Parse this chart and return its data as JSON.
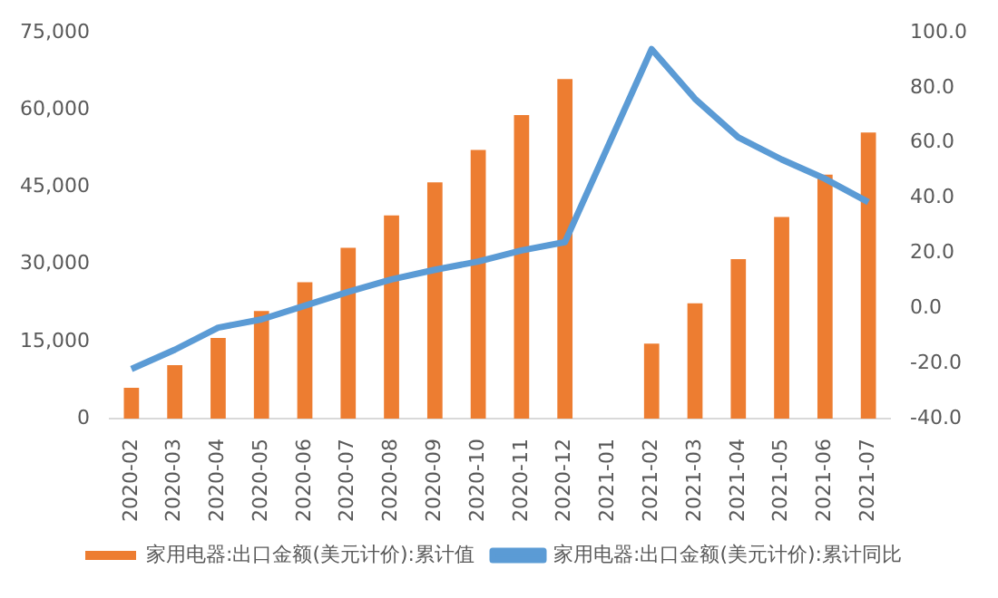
{
  "chart_data": {
    "type": "bar",
    "categories": [
      "2020-02",
      "2020-03",
      "2020-04",
      "2020-05",
      "2020-06",
      "2020-07",
      "2020-08",
      "2020-09",
      "2020-10",
      "2020-11",
      "2020-12",
      "2021-01",
      "2021-02",
      "2021-03",
      "2021-04",
      "2021-05",
      "2021-06",
      "2021-07"
    ],
    "series": [
      {
        "name": "家用电器:出口金额(美元计价):累计值",
        "color": "#ed7d31",
        "values": [
          6000,
          10400,
          15700,
          20900,
          26500,
          33200,
          39500,
          45900,
          52200,
          59000,
          66000,
          null,
          14600,
          22400,
          31000,
          39200,
          47400,
          55600
        ]
      },
      {
        "name": "家用电器:出口金额(美元计价):累计同比",
        "type": "line",
        "axis": "y2",
        "color": "#5b9bd5",
        "values": [
          -22,
          -15,
          -7,
          -4,
          1,
          6,
          10.5,
          14,
          17,
          21,
          24,
          null,
          94,
          76,
          62,
          54,
          47,
          38.5
        ]
      }
    ],
    "ylim": [
      0,
      75000
    ],
    "yticks": [
      {
        "value": 0,
        "label": "0"
      },
      {
        "value": 15000,
        "label": "15,000"
      },
      {
        "value": 30000,
        "label": "30,000"
      },
      {
        "value": 45000,
        "label": "45,000"
      },
      {
        "value": 60000,
        "label": "60,000"
      },
      {
        "value": 75000,
        "label": "75,000"
      }
    ],
    "y2lim": [
      -40,
      100
    ],
    "y2ticks": [
      {
        "value": -40,
        "label": "-40.0"
      },
      {
        "value": -20,
        "label": "-20.0"
      },
      {
        "value": 0,
        "label": "0.0"
      },
      {
        "value": 20,
        "label": "20.0"
      },
      {
        "value": 40,
        "label": "40.0"
      },
      {
        "value": 60,
        "label": "60.0"
      },
      {
        "value": 80,
        "label": "80.0"
      },
      {
        "value": 100,
        "label": "100.0"
      }
    ],
    "grid": false,
    "legend": "bottom",
    "marker": "none"
  }
}
